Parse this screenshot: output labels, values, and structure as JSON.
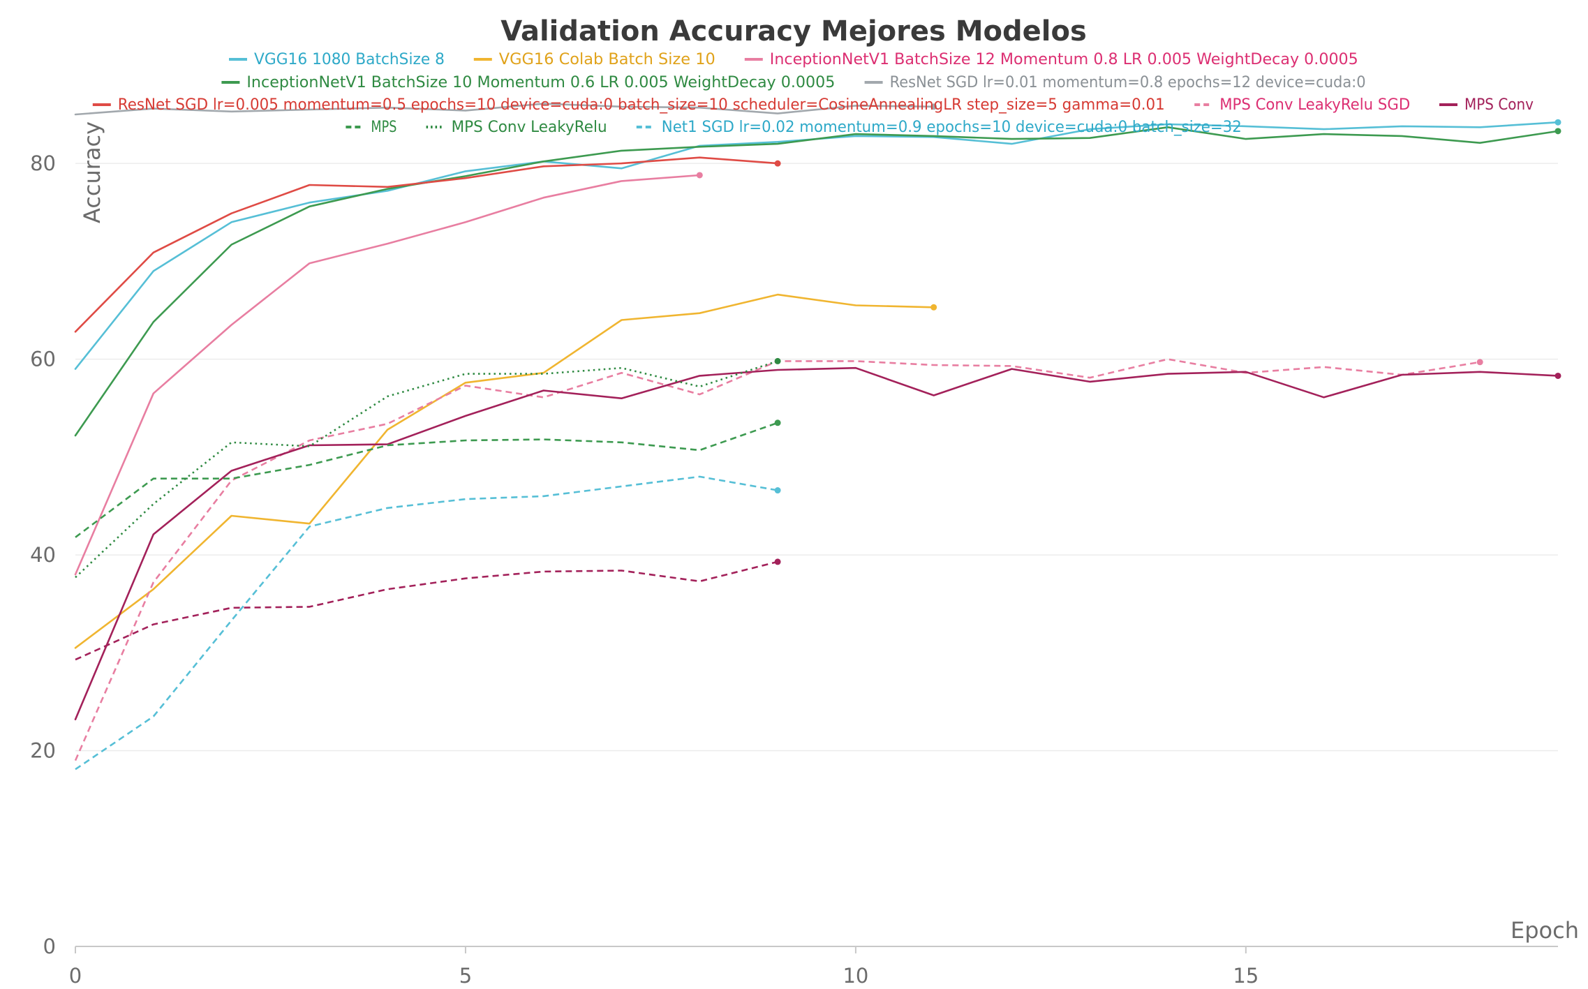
{
  "chart_data": {
    "type": "line",
    "title": "Validation Accuracy Mejores Modelos",
    "xlabel": "Epoch",
    "ylabel": "Accuracy",
    "xlim": [
      0,
      19
    ],
    "ylim": [
      0,
      86
    ],
    "x_ticks": [
      "0",
      "5",
      "10",
      "15"
    ],
    "y_ticks": [
      "0",
      "20",
      "40",
      "60",
      "80"
    ],
    "grid": "horizontal",
    "legend_position": "top",
    "series": [
      {
        "name": "VGG16 1080 BatchSize 8",
        "color": "#56bfd6",
        "text_color": "#2ea9c8",
        "dash": "solid",
        "x": [
          0,
          1,
          2,
          3,
          4,
          5,
          6,
          7,
          8,
          9,
          10,
          11,
          12,
          13,
          14,
          15,
          16,
          17,
          18,
          19
        ],
        "values": [
          59,
          69,
          74,
          76,
          77.2,
          79.2,
          80.2,
          79.5,
          81.8,
          82.2,
          82.8,
          82.7,
          82,
          83.5,
          84,
          83.8,
          83.5,
          83.8,
          83.7,
          84.2
        ]
      },
      {
        "name": "VGG16 Colab Batch Size 10",
        "color": "#f0b530",
        "text_color": "#e0a21a",
        "dash": "solid",
        "x": [
          0,
          1,
          2,
          3,
          4,
          5,
          6,
          7,
          8,
          9,
          10,
          11
        ],
        "values": [
          30.5,
          36.5,
          44,
          43.2,
          52.8,
          57.6,
          58.6,
          64,
          64.7,
          66.6,
          65.5,
          65.3
        ]
      },
      {
        "name": "InceptionNetV1 BatchSize 12 Momentum 0.8 LR 0.005 WeightDecay 0.0005",
        "color": "#e87ea1",
        "text_color": "#dc2f72",
        "dash": "solid",
        "x": [
          0,
          1,
          2,
          3,
          4,
          5,
          6,
          7,
          8
        ],
        "values": [
          38,
          56.5,
          63.5,
          69.8,
          71.8,
          74,
          76.5,
          78.2,
          78.8
        ]
      },
      {
        "name": "InceptionNetV1 BatchSize 10 Momentum 0.6 LR 0.005 WeightDecay 0.0005",
        "color": "#3d9a50",
        "text_color": "#2f8a42",
        "dash": "solid",
        "x": [
          0,
          1,
          2,
          3,
          4,
          5,
          6,
          7,
          8,
          9,
          10,
          11,
          12,
          13,
          14,
          15,
          16,
          17,
          18,
          19
        ],
        "values": [
          52.2,
          63.8,
          71.7,
          75.6,
          77.4,
          78.7,
          80.2,
          81.3,
          81.7,
          82,
          83,
          82.8,
          82.5,
          82.6,
          83.7,
          82.5,
          83,
          82.8,
          82.1,
          83.3
        ]
      },
      {
        "name": "ResNet SGD lr=0.01 momentum=0.8 epochs=12 device=cuda:0",
        "color": "#a2a8ad",
        "text_color": "#8a9095",
        "dash": "solid",
        "x": [
          0,
          1,
          2,
          3,
          4,
          5,
          6,
          7,
          8,
          9,
          10,
          11
        ],
        "values": [
          85,
          85.6,
          85.3,
          85.5,
          85.7,
          85.4,
          86.1,
          85.8,
          85.7,
          85.1,
          85.9,
          85.8
        ]
      },
      {
        "name": "ResNet SGD lr=0.005 momentum=0.5 epochs=10 device=cuda:0 batch_size=10 scheduler=CosineAnnealingLR step_size=5 gamma=0.01",
        "color": "#df4b45",
        "text_color": "#d63a33",
        "dash": "solid",
        "x": [
          0,
          1,
          2,
          3,
          4,
          5,
          6,
          7,
          8,
          9
        ],
        "values": [
          62.8,
          70.9,
          74.9,
          77.8,
          77.6,
          78.5,
          79.7,
          80,
          80.6,
          80
        ]
      },
      {
        "name": "MPS Conv LeakyRelu SGD",
        "color": "#e87ea1",
        "text_color": "#dc2f72",
        "dash": "dashed",
        "x": [
          0,
          1,
          2,
          3,
          4,
          5,
          6,
          7,
          8,
          9,
          10,
          11,
          12,
          13,
          14,
          15,
          16,
          17,
          18
        ],
        "values": [
          19,
          37.2,
          47.6,
          51.7,
          53.4,
          57.3,
          56.1,
          58.6,
          56.4,
          59.8,
          59.8,
          59.4,
          59.3,
          58.1,
          60,
          58.6,
          59.2,
          58.4,
          59.7
        ]
      },
      {
        "name": "MPS Conv",
        "color": "#a3215a",
        "text_color": "#a3215a",
        "dash": "solid",
        "x": [
          0,
          1,
          2,
          3,
          4,
          5,
          6,
          7,
          8,
          9,
          10,
          11,
          12,
          13,
          14,
          15,
          16,
          17,
          18,
          19
        ],
        "values": [
          23.2,
          42.1,
          48.6,
          51.2,
          51.3,
          54.2,
          56.8,
          56,
          58.3,
          58.9,
          59.1,
          56.3,
          59,
          57.7,
          58.5,
          58.7,
          56.1,
          58.4,
          58.7,
          58.3
        ]
      },
      {
        "name": "MPS",
        "color": "#3d9a50",
        "text_color": "#2f8a42",
        "dash": "dashed",
        "x": [
          0,
          1,
          2,
          3,
          4,
          5,
          6,
          7,
          8,
          9
        ],
        "values": [
          41.8,
          47.8,
          47.8,
          49.2,
          51.2,
          51.7,
          51.8,
          51.5,
          50.7,
          53.5
        ]
      },
      {
        "name": "MPS Conv LeakyRelu",
        "color": "#2f8a42",
        "text_color": "#2f8a42",
        "dash": "dotted",
        "x": [
          0,
          1,
          2,
          3,
          4,
          5,
          6,
          7,
          8,
          9
        ],
        "values": [
          37.7,
          45.2,
          51.5,
          51.1,
          56.2,
          58.5,
          58.5,
          59.1,
          57.2,
          59.8
        ]
      },
      {
        "name": "Net1 SGD lr=0.02 momentum=0.9 epochs=10 device=cuda:0 batch_size=32",
        "color": "#56bfd6",
        "text_color": "#2ea9c8",
        "dash": "dashed",
        "x": [
          0,
          1,
          2,
          3,
          4,
          5,
          6,
          7,
          8,
          9
        ],
        "values": [
          18.1,
          23.5,
          33.3,
          42.9,
          44.8,
          45.7,
          46,
          47,
          48,
          46.6
        ]
      },
      {
        "name": "",
        "color": "#a3215a",
        "text_color": "#a3215a",
        "dash": "dashed",
        "x": [
          0,
          1,
          2,
          3,
          4,
          5,
          6,
          7,
          8,
          9
        ],
        "values": [
          29.3,
          32.9,
          34.6,
          34.7,
          36.5,
          37.6,
          38.3,
          38.4,
          37.3,
          39.3
        ]
      }
    ]
  }
}
